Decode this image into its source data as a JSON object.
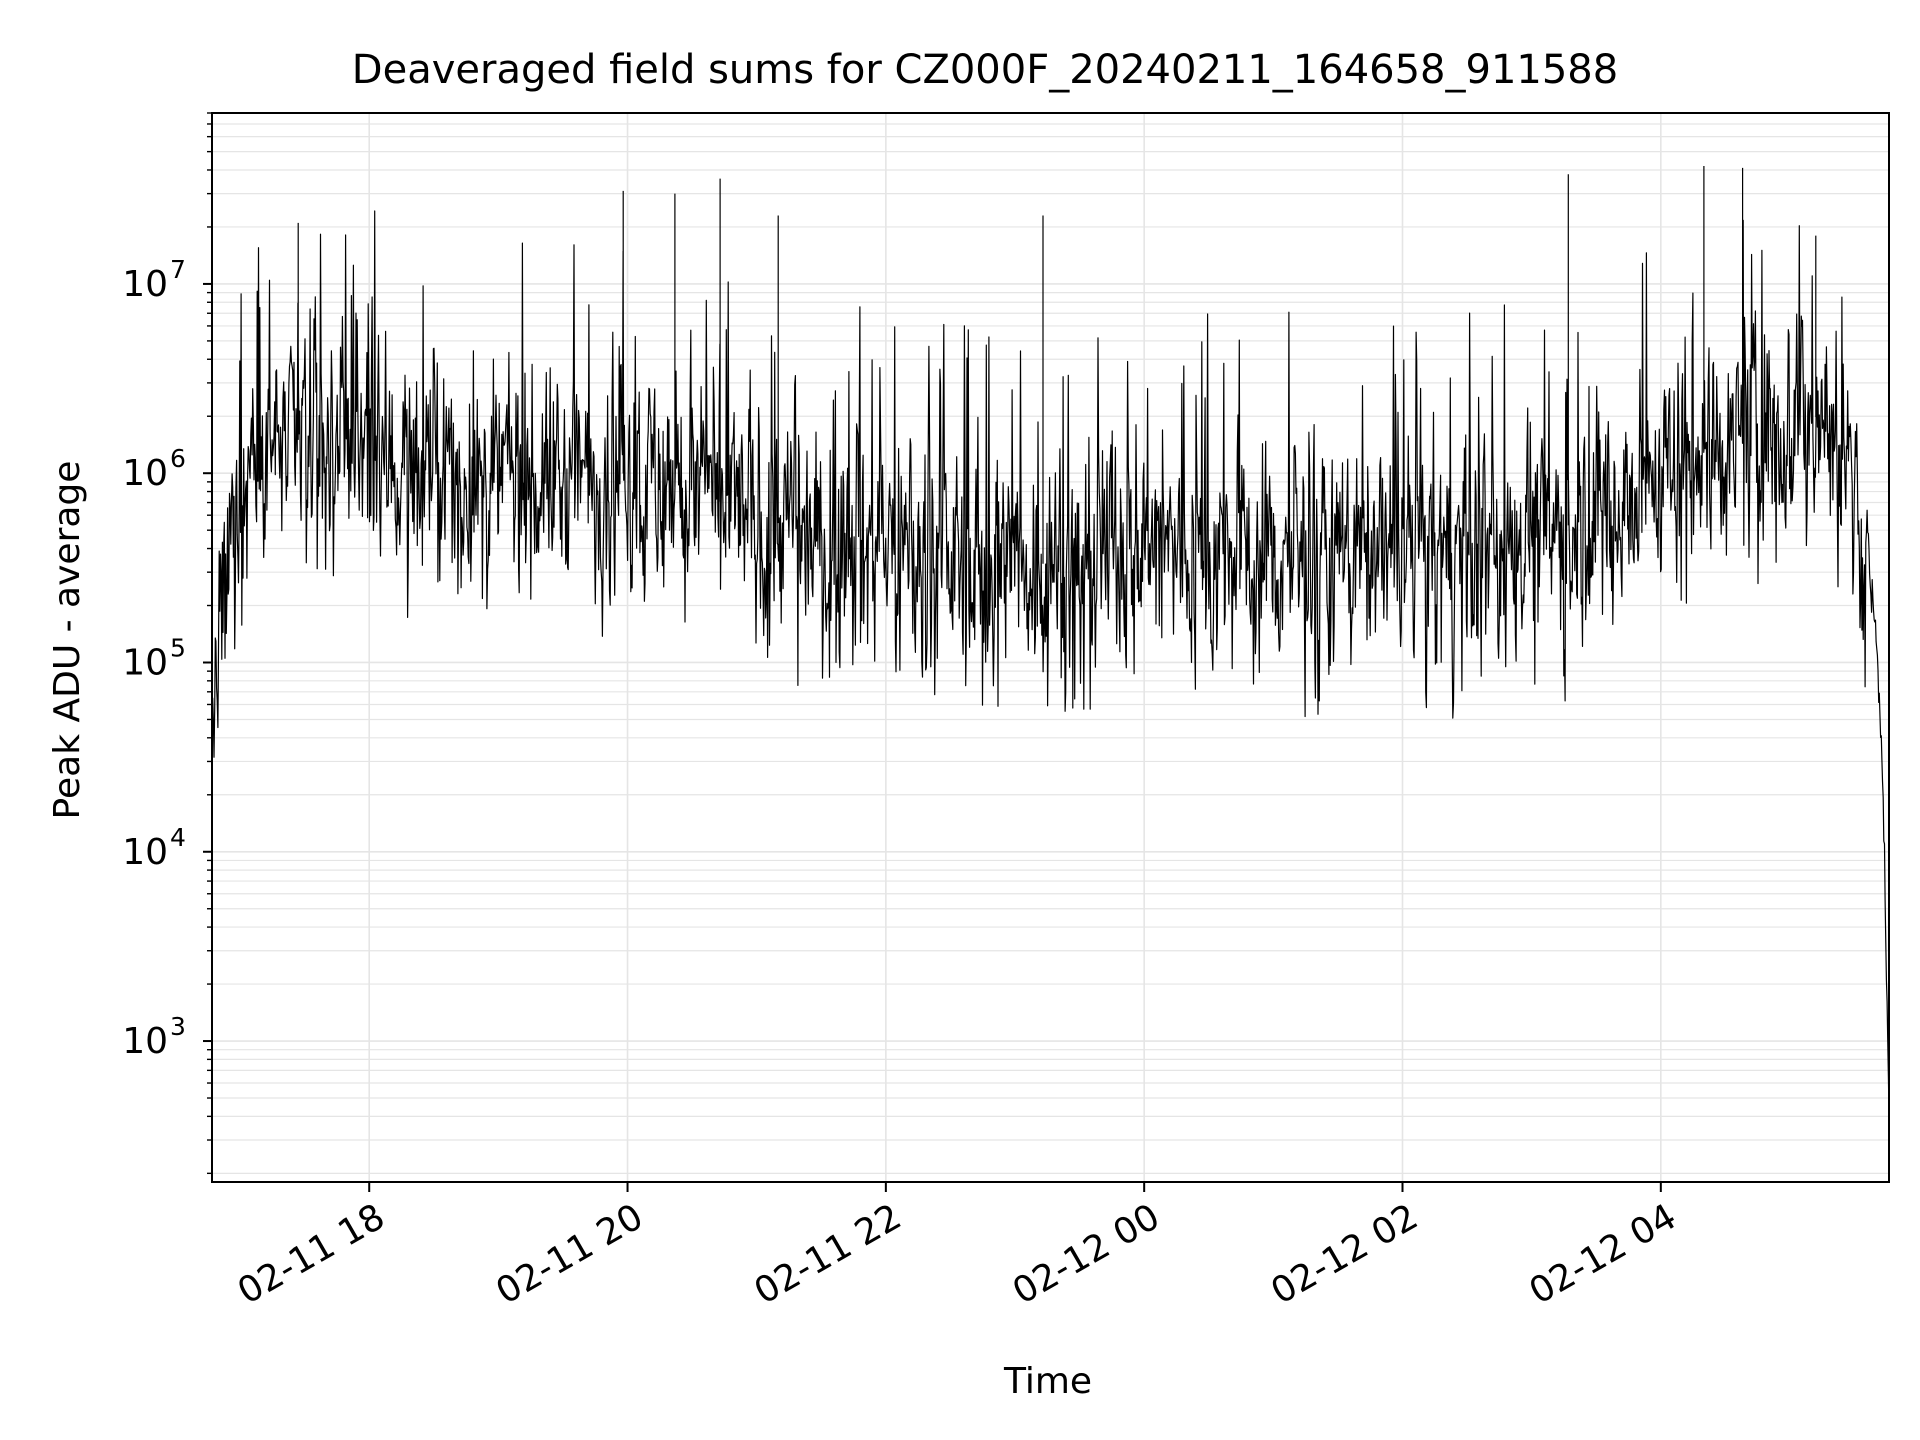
{
  "chart_data": {
    "type": "line",
    "title": "Deaveraged field sums for CZ000F_20240211_164658_911588",
    "xlabel": "Time",
    "ylabel": "Peak ADU - average",
    "yscale": "log",
    "ylim": [
      180,
      80000000
    ],
    "xlim": [
      "2024-02-11T16:46:58",
      "2024-02-12T05:46:00"
    ],
    "grid": "on (major and minor)",
    "legend": "none",
    "line_color": "#000000",
    "grid_color": "#e5e5e5",
    "x_ticks": [
      {
        "t": "2024-02-11T18:00",
        "label": "02-11 18"
      },
      {
        "t": "2024-02-11T20:00",
        "label": "02-11 20"
      },
      {
        "t": "2024-02-11T22:00",
        "label": "02-11 22"
      },
      {
        "t": "2024-02-12T00:00",
        "label": "02-12 00"
      },
      {
        "t": "2024-02-12T02:00",
        "label": "02-12 02"
      },
      {
        "t": "2024-02-12T04:00",
        "label": "02-12 04"
      }
    ],
    "y_ticks": [
      {
        "v": 1000,
        "base": "10",
        "exp": "3"
      },
      {
        "v": 10000,
        "base": "10",
        "exp": "4"
      },
      {
        "v": 100000,
        "base": "10",
        "exp": "5"
      },
      {
        "v": 1000000,
        "base": "10",
        "exp": "6"
      },
      {
        "v": 10000000,
        "base": "10",
        "exp": "7"
      }
    ],
    "series": [
      {
        "x": [
          "2024-02-11T16:47",
          "2024-02-11T16:48",
          "2024-02-11T16:52",
          "2024-02-11T16:58",
          "2024-02-11T17:05",
          "2024-02-11T17:15",
          "2024-02-11T17:30",
          "2024-02-11T17:45",
          "2024-02-11T18:00",
          "2024-02-11T18:30",
          "2024-02-11T19:00",
          "2024-02-11T19:30",
          "2024-02-11T20:00",
          "2024-02-11T20:30",
          "2024-02-11T21:00",
          "2024-02-11T21:30",
          "2024-02-11T22:00",
          "2024-02-11T22:30",
          "2024-02-11T23:00",
          "2024-02-11T23:30",
          "2024-02-12T00:00",
          "2024-02-12T00:30",
          "2024-02-12T01:00",
          "2024-02-12T01:30",
          "2024-02-12T02:00",
          "2024-02-12T02:30",
          "2024-02-12T03:00",
          "2024-02-12T03:30",
          "2024-02-12T04:00",
          "2024-02-12T04:30",
          "2024-02-12T05:00",
          "2024-02-12T05:15",
          "2024-02-12T05:25",
          "2024-02-12T05:35",
          "2024-02-12T05:40",
          "2024-02-12T05:43",
          "2024-02-12T05:45",
          "2024-02-12T05:46"
        ],
        "y": [
          30000,
          40000,
          150000,
          600000,
          1300000,
          1500000,
          1500000,
          1400000,
          1300000,
          1000000,
          900000,
          950000,
          1000000,
          800000,
          600000,
          450000,
          400000,
          350000,
          320000,
          350000,
          400000,
          380000,
          350000,
          380000,
          380000,
          350000,
          450000,
          600000,
          1000000,
          1500000,
          1900000,
          2000000,
          1300000,
          500000,
          150000,
          30000,
          2000,
          450
        ]
      }
    ],
    "notable_spikes": {
      "x": [
        "2024-02-11T17:27",
        "2024-02-11T19:58",
        "2024-02-11T20:22",
        "2024-02-11T20:43",
        "2024-02-11T21:10",
        "2024-02-11T23:13",
        "2024-02-12T03:17",
        "2024-02-12T04:20",
        "2024-02-12T04:38",
        "2024-02-12T05:12"
      ],
      "y": [
        21000000,
        31000000,
        30000000,
        36000000,
        23000000,
        23000000,
        38000000,
        42000000,
        41000000,
        18000000
      ]
    }
  }
}
